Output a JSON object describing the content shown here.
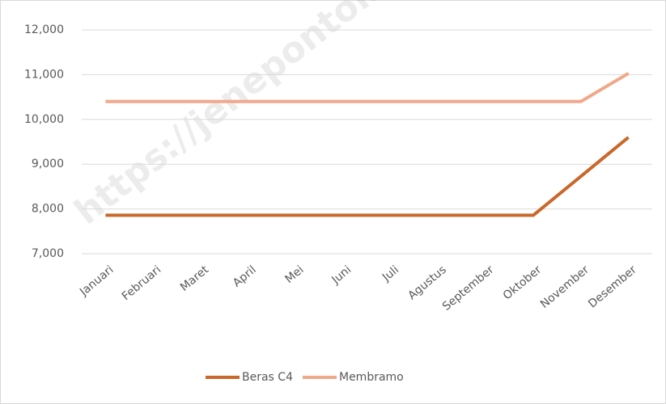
{
  "chart_data": {
    "type": "line",
    "watermark": "https://jenepontokab",
    "categories": [
      "Januari",
      "Februari",
      "Maret",
      "April",
      "Mei",
      "Juni",
      "Juli",
      "Agustus",
      "September",
      "Oktober",
      "November",
      "Desember"
    ],
    "series": [
      {
        "name": "Beras C4",
        "color": "#c9682a",
        "values": [
          7860,
          7860,
          7860,
          7860,
          7860,
          7860,
          7860,
          7860,
          7860,
          7860,
          8730,
          9600
        ]
      },
      {
        "name": "Membramo",
        "color": "#f0a88a",
        "values": [
          10400,
          10400,
          10400,
          10400,
          10400,
          10400,
          10400,
          10400,
          10400,
          10400,
          10400,
          11030
        ]
      }
    ],
    "ylim": [
      7000,
      12000
    ],
    "yticks": [
      {
        "value": 7000,
        "label": "7,000"
      },
      {
        "value": 8000,
        "label": "8,000"
      },
      {
        "value": 9000,
        "label": "9,000"
      },
      {
        "value": 10000,
        "label": "10,000"
      },
      {
        "value": 11000,
        "label": "11,000"
      },
      {
        "value": 12000,
        "label": "12,000"
      }
    ],
    "grid": true,
    "legend": "bottom"
  }
}
